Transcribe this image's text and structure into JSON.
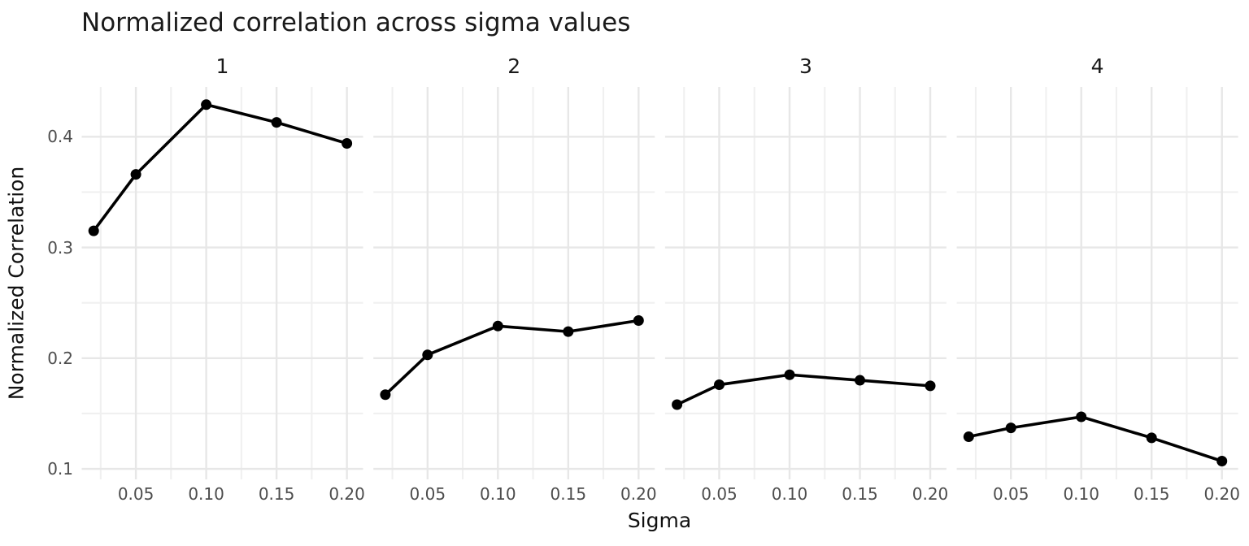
{
  "chart_data": {
    "type": "line",
    "title": "Normalized correlation across sigma values",
    "xlabel": "Sigma",
    "ylabel": "Normalized Correlation",
    "x": [
      0.02,
      0.05,
      0.1,
      0.15,
      0.2
    ],
    "facets": [
      {
        "label": "1",
        "values": [
          0.315,
          0.366,
          0.429,
          0.413,
          0.394
        ]
      },
      {
        "label": "2",
        "values": [
          0.167,
          0.203,
          0.229,
          0.224,
          0.234
        ]
      },
      {
        "label": "3",
        "values": [
          0.158,
          0.176,
          0.185,
          0.18,
          0.175
        ]
      },
      {
        "label": "4",
        "values": [
          0.129,
          0.137,
          0.147,
          0.128,
          0.107
        ]
      }
    ],
    "x_ticks": [
      0.05,
      0.1,
      0.15,
      0.2
    ],
    "x_tick_labels": [
      "0.05",
      "0.10",
      "0.15",
      "0.20"
    ],
    "x_minor_ticks": [
      0.025,
      0.075,
      0.125,
      0.175
    ],
    "y_ticks": [
      0.1,
      0.2,
      0.3,
      0.4
    ],
    "y_tick_labels": [
      "0.1",
      "0.2",
      "0.3",
      "0.4"
    ],
    "y_minor_ticks": [
      0.15,
      0.25,
      0.35
    ],
    "xlim": [
      0.0115,
      0.2115
    ],
    "ylim": [
      0.0905,
      0.445
    ],
    "grid": true,
    "legend": "none",
    "colors": {
      "line": "#000000",
      "point": "#000000",
      "grid_major": "#e7e7e7",
      "grid_minor": "#f0f0f0",
      "tick_label": "#4d4d4d",
      "text": "#1a1a1a",
      "background": "#ffffff"
    }
  }
}
